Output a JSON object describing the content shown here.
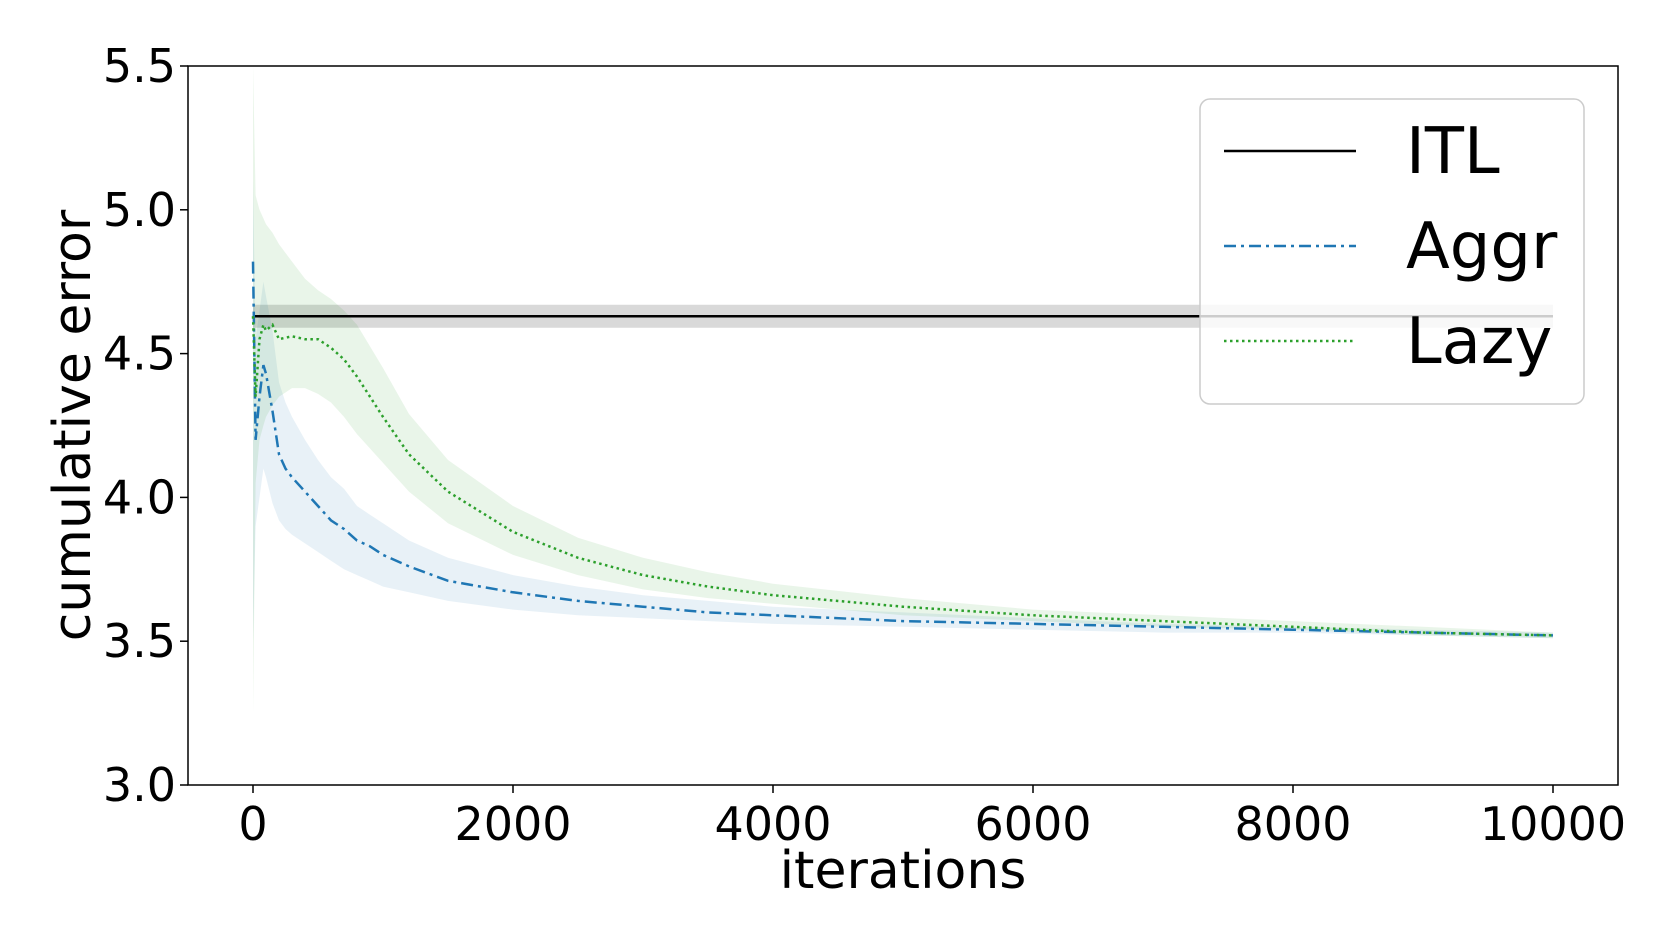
{
  "chart_data": {
    "type": "line",
    "xlabel": "iterations",
    "ylabel": "cumulative error",
    "xlim": [
      -500,
      10500
    ],
    "ylim": [
      3.0,
      5.5
    ],
    "xticks": [
      0,
      2000,
      4000,
      6000,
      8000,
      10000
    ],
    "xtick_labels": [
      "0",
      "2000",
      "4000",
      "6000",
      "8000",
      "10000"
    ],
    "yticks": [
      3.0,
      3.5,
      4.0,
      4.5,
      5.0,
      5.5
    ],
    "ytick_labels": [
      "3.0",
      "3.5",
      "4.0",
      "4.5",
      "5.0",
      "5.5"
    ],
    "grid": false,
    "legend_position": "top-right",
    "series": [
      {
        "name": "ITL",
        "color": "#000000",
        "style": "solid",
        "x": [
          0,
          10000
        ],
        "y": [
          4.63,
          4.63
        ],
        "band_low": [
          4.59,
          4.59
        ],
        "band_high": [
          4.67,
          4.67
        ]
      },
      {
        "name": "Aggr",
        "color": "#1f77b4",
        "style": "dashdot",
        "x": [
          0,
          20,
          50,
          80,
          100,
          150,
          200,
          250,
          300,
          400,
          500,
          600,
          700,
          800,
          900,
          1000,
          1200,
          1500,
          2000,
          2500,
          3000,
          3500,
          4000,
          5000,
          6000,
          7000,
          8000,
          9000,
          10000
        ],
        "y": [
          4.82,
          4.2,
          4.35,
          4.46,
          4.43,
          4.3,
          4.15,
          4.1,
          4.07,
          4.02,
          3.97,
          3.92,
          3.89,
          3.85,
          3.83,
          3.8,
          3.76,
          3.71,
          3.67,
          3.64,
          3.62,
          3.6,
          3.59,
          3.57,
          3.56,
          3.55,
          3.54,
          3.53,
          3.52
        ],
        "band_low": [
          3.5,
          3.9,
          4.0,
          4.1,
          4.07,
          3.98,
          3.92,
          3.89,
          3.87,
          3.84,
          3.81,
          3.78,
          3.75,
          3.73,
          3.71,
          3.69,
          3.67,
          3.64,
          3.61,
          3.59,
          3.58,
          3.57,
          3.56,
          3.55,
          3.54,
          3.53,
          3.53,
          3.52,
          3.51
        ],
        "band_high": [
          5.1,
          4.55,
          4.65,
          4.75,
          4.7,
          4.58,
          4.4,
          4.33,
          4.28,
          4.2,
          4.13,
          4.07,
          4.03,
          3.97,
          3.94,
          3.91,
          3.85,
          3.79,
          3.73,
          3.69,
          3.66,
          3.64,
          3.62,
          3.6,
          3.58,
          3.56,
          3.55,
          3.54,
          3.53
        ]
      },
      {
        "name": "Lazy",
        "color": "#2ca02c",
        "style": "dotted",
        "x": [
          0,
          20,
          50,
          80,
          100,
          150,
          200,
          300,
          400,
          500,
          600,
          700,
          800,
          1000,
          1200,
          1500,
          2000,
          2500,
          3000,
          3500,
          4000,
          5000,
          6000,
          7000,
          8000,
          9000,
          10000
        ],
        "y": [
          4.63,
          4.35,
          4.55,
          4.6,
          4.58,
          4.6,
          4.55,
          4.56,
          4.55,
          4.55,
          4.52,
          4.48,
          4.42,
          4.28,
          4.15,
          4.02,
          3.88,
          3.79,
          3.73,
          3.69,
          3.66,
          3.62,
          3.59,
          3.57,
          3.55,
          3.53,
          3.52
        ],
        "band_low": [
          3.25,
          4.05,
          4.2,
          4.25,
          4.28,
          4.32,
          4.35,
          4.38,
          4.38,
          4.36,
          4.33,
          4.28,
          4.22,
          4.12,
          4.02,
          3.91,
          3.8,
          3.73,
          3.68,
          3.65,
          3.63,
          3.59,
          3.57,
          3.55,
          3.54,
          3.52,
          3.51
        ],
        "band_high": [
          5.5,
          5.05,
          5.0,
          4.97,
          4.95,
          4.92,
          4.88,
          4.82,
          4.76,
          4.72,
          4.69,
          4.65,
          4.6,
          4.45,
          4.29,
          4.13,
          3.97,
          3.86,
          3.79,
          3.74,
          3.7,
          3.65,
          3.61,
          3.59,
          3.57,
          3.55,
          3.53
        ]
      }
    ]
  }
}
